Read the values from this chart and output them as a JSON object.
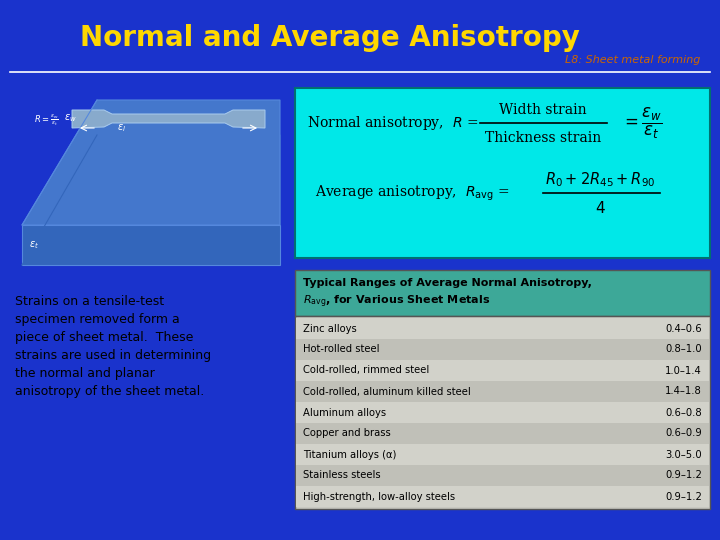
{
  "title": "Normal and Average Anisotropy",
  "subtitle": "L8: Sheet metal forming",
  "bg_color": "#1a33cc",
  "title_color": "#FFD700",
  "subtitle_color": "#CC6600",
  "header_line_color": "#FFFFFF",
  "formula_box_color": "#00E8E8",
  "table_header_color": "#3DA898",
  "table_bg_color": "#C8C8C0",
  "table_title1": "Typical Ranges of Average Normal Anisotropy,",
  "table_title2": "R_avg, for Various Sheet Metals",
  "table_rows": [
    [
      "Zinc alloys",
      "0.4–0.6"
    ],
    [
      "Hot-rolled steel",
      "0.8–1.0"
    ],
    [
      "Cold-rolled, rimmed steel",
      "1.0–1.4"
    ],
    [
      "Cold-rolled, aluminum killed steel",
      "1.4–1.8"
    ],
    [
      "Aluminum alloys",
      "0.6–0.8"
    ],
    [
      "Copper and brass",
      "0.6–0.9"
    ],
    [
      "Titanium alloys (α)",
      "3.0–5.0"
    ],
    [
      "Stainless steels",
      "0.9–1.2"
    ],
    [
      "High-strength, low-alloy steels",
      "0.9–1.2"
    ]
  ],
  "left_text": "Strains on a tensile-test\nspecimen removed form a\npiece of sheet metal.  These\nstrains are used in determining\nthe normal and planar\nanisotropy of the sheet metal.",
  "img_bg": "#1a33cc",
  "sheet_face": "#3366BB",
  "sheet_top": "#4477CC",
  "sheet_side": "#2255AA",
  "specimen_color": "#88AACC"
}
